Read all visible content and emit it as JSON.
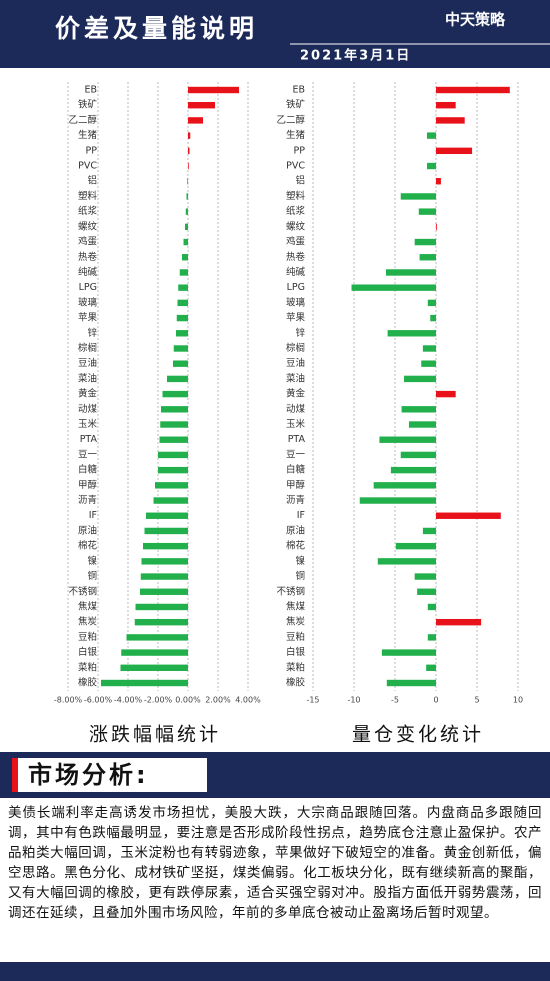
{
  "header": {
    "title": "价差及量能说明",
    "date": "2021年3月1日",
    "logo": "中天策略"
  },
  "chart_data": [
    {
      "type": "bar",
      "orientation": "horizontal",
      "caption": "涨跌幅幅统计",
      "categories": [
        "EB",
        "铁矿",
        "乙二醇",
        "生猪",
        "PP",
        "PVC",
        "铝",
        "塑料",
        "纸浆",
        "螺纹",
        "鸡蛋",
        "热卷",
        "纯碱",
        "LPG",
        "玻璃",
        "苹果",
        "锌",
        "棕榈",
        "豆油",
        "菜油",
        "黄金",
        "动煤",
        "玉米",
        "PTA",
        "豆一",
        "白糖",
        "甲醇",
        "沥青",
        "IF",
        "原油",
        "棉花",
        "镍",
        "铜",
        "不锈钢",
        "焦煤",
        "焦炭",
        "豆粕",
        "白银",
        "菜粕",
        "橡胶"
      ],
      "values": [
        3.4,
        1.8,
        1.0,
        0.15,
        0.1,
        0.05,
        -0.05,
        -0.1,
        -0.15,
        -0.2,
        -0.3,
        -0.4,
        -0.55,
        -0.65,
        -0.7,
        -0.75,
        -0.8,
        -0.95,
        -1.0,
        -1.4,
        -1.7,
        -1.8,
        -1.85,
        -1.9,
        -2.0,
        -2.0,
        -2.2,
        -2.3,
        -2.8,
        -2.9,
        -3.0,
        -3.1,
        -3.15,
        -3.2,
        -3.5,
        -3.55,
        -4.1,
        -4.45,
        -4.5,
        -5.8
      ],
      "positive_color": "#e8121a",
      "negative_color": "#22b04c",
      "xlim": [
        -8,
        4
      ],
      "xticks": [
        {
          "value": -8,
          "label": "-8.00%"
        },
        {
          "value": -6,
          "label": "-6.00%"
        },
        {
          "value": -4,
          "label": "-4.00%"
        },
        {
          "value": -2,
          "label": "-2.00%"
        },
        {
          "value": 0,
          "label": "0.00%"
        },
        {
          "value": 2,
          "label": "2.00%"
        },
        {
          "value": 4,
          "label": "4.00%"
        }
      ],
      "grid": true
    },
    {
      "type": "bar",
      "orientation": "horizontal",
      "caption": "量仓变化统计",
      "categories": [
        "EB",
        "铁矿",
        "乙二醇",
        "生猪",
        "PP",
        "PVC",
        "铝",
        "塑料",
        "纸浆",
        "螺纹",
        "鸡蛋",
        "热卷",
        "纯碱",
        "LPG",
        "玻璃",
        "苹果",
        "锌",
        "棕榈",
        "豆油",
        "菜油",
        "黄金",
        "动煤",
        "玉米",
        "PTA",
        "豆一",
        "白糖",
        "甲醇",
        "沥青",
        "IF",
        "原油",
        "棉花",
        "镍",
        "铜",
        "不锈钢",
        "焦煤",
        "焦炭",
        "豆粕",
        "白银",
        "菜粕",
        "橡胶"
      ],
      "values": [
        9.0,
        2.4,
        3.5,
        -1.1,
        4.4,
        -1.1,
        0.6,
        -4.3,
        -2.1,
        0.1,
        -2.6,
        -2.0,
        -6.1,
        -10.3,
        -1.0,
        -0.7,
        -5.9,
        -1.6,
        -1.8,
        -3.9,
        2.4,
        -4.2,
        -3.3,
        -6.9,
        -4.3,
        -5.5,
        -7.6,
        -9.3,
        7.9,
        -1.6,
        -4.9,
        -7.1,
        -2.6,
        -2.3,
        -1.0,
        5.5,
        -1.0,
        -6.6,
        -1.2,
        -6.0
      ],
      "positive_color": "#e8121a",
      "negative_color": "#22b04c",
      "xlim": [
        -15,
        10
      ],
      "xticks": [
        -15,
        -10,
        -5,
        0,
        5,
        10
      ],
      "grid": true
    }
  ],
  "analysis": {
    "heading": "市场分析:",
    "text": "美债长端利率走高诱发市场担忧，美股大跌，大宗商品跟随回落。内盘商品多跟随回调，其中有色跌幅最明显，要注意是否形成阶段性拐点，趋势底仓注意止盈保护。农产品粕类大幅回调，玉米淀粉也有转弱迹象，苹果做好下破短空的准备。黄金创新低，偏空思路。黑色分化、成材铁矿坚挺，煤类偏弱。化工板块分化，既有继续新高的聚酯，又有大幅回调的橡胶，更有跌停尿素，适合买强空弱对冲。股指方面低开弱势震荡，回调还在延续，且叠加外围市场风险，年前的多单底仓被动止盈离场后暂时观望。"
  }
}
